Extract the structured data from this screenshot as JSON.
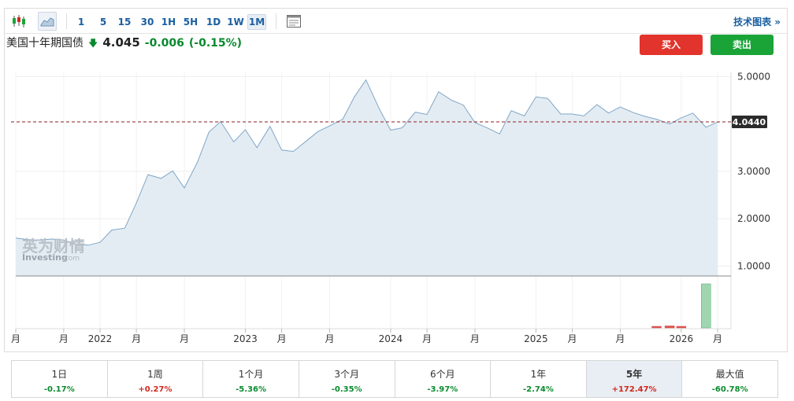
{
  "toolbar": {
    "timeframes": [
      "1",
      "5",
      "15",
      "30",
      "1H",
      "5H",
      "1D",
      "1W",
      "1M"
    ],
    "active_timeframe": "1M",
    "tech_chart_label": "技术图表 »",
    "icons": [
      "candlestick-icon",
      "area-chart-icon",
      "table-view-icon"
    ]
  },
  "quote": {
    "name": "美国十年期国债",
    "direction": "down",
    "price": "4.045",
    "change": "-0.006",
    "change_pct": "(-0.15%)"
  },
  "actions": {
    "buy_label": "买入",
    "sell_label": "卖出"
  },
  "watermark": {
    "cn": "英为财情",
    "en": "Investing",
    "en_suffix": ".com"
  },
  "current_price_tag": "4.0440",
  "colors": {
    "area_fill": "#e4ecf3",
    "line": "#7fa6c8",
    "ref_line": "#8b1e1e",
    "tag_bg": "#2b2b2b",
    "vol_up": "#9fd6b0",
    "vol_down": "#d9534f",
    "buy": "#e2342c",
    "sell": "#1aa438",
    "down": "#0a8a2e",
    "up": "#d0281f"
  },
  "chart_data": {
    "type": "area",
    "title": "",
    "y_ticks": [
      "5.0000",
      "3.0000",
      "2.0000",
      "1.0000"
    ],
    "y_tick_values": [
      5,
      3,
      2,
      1
    ],
    "ylim": [
      0.79,
      5.09
    ],
    "x_tick_labels": [
      "月",
      "月",
      "2022",
      "月",
      "月",
      "2023",
      "月",
      "月",
      "2024",
      "月",
      "月",
      "2025",
      "月",
      "月",
      "2026",
      "月"
    ],
    "x_tick_positions": [
      2021.42,
      2021.75,
      2022.0,
      2022.25,
      2022.58,
      2023.0,
      2023.25,
      2023.58,
      2024.0,
      2024.25,
      2024.58,
      2025.0,
      2025.25,
      2025.58,
      2026.0,
      2026.25
    ],
    "current_value": 4.044,
    "series": [
      {
        "values": [
          [
            2021.42,
            1.59
          ],
          [
            2021.5,
            1.56
          ],
          [
            2021.58,
            1.55
          ],
          [
            2021.67,
            1.57
          ],
          [
            2021.75,
            1.55
          ],
          [
            2021.83,
            1.46
          ],
          [
            2021.92,
            1.44
          ],
          [
            2022.0,
            1.5
          ],
          [
            2022.08,
            1.76
          ],
          [
            2022.17,
            1.8
          ],
          [
            2022.25,
            2.33
          ],
          [
            2022.33,
            2.93
          ],
          [
            2022.42,
            2.85
          ],
          [
            2022.5,
            3.01
          ],
          [
            2022.58,
            2.65
          ],
          [
            2022.67,
            3.19
          ],
          [
            2022.75,
            3.83
          ],
          [
            2022.83,
            4.05
          ],
          [
            2022.92,
            3.62
          ],
          [
            2023.0,
            3.88
          ],
          [
            2023.08,
            3.5
          ],
          [
            2023.17,
            3.95
          ],
          [
            2023.25,
            3.45
          ],
          [
            2023.33,
            3.42
          ],
          [
            2023.42,
            3.64
          ],
          [
            2023.5,
            3.84
          ],
          [
            2023.58,
            3.96
          ],
          [
            2023.67,
            4.1
          ],
          [
            2023.75,
            4.57
          ],
          [
            2023.83,
            4.93
          ],
          [
            2023.92,
            4.33
          ],
          [
            2024.0,
            3.87
          ],
          [
            2024.08,
            3.92
          ],
          [
            2024.17,
            4.25
          ],
          [
            2024.25,
            4.2
          ],
          [
            2024.33,
            4.68
          ],
          [
            2024.42,
            4.5
          ],
          [
            2024.5,
            4.4
          ],
          [
            2024.58,
            4.03
          ],
          [
            2024.67,
            3.91
          ],
          [
            2024.75,
            3.79
          ],
          [
            2024.83,
            4.28
          ],
          [
            2024.92,
            4.17
          ],
          [
            2025.0,
            4.57
          ],
          [
            2025.08,
            4.54
          ],
          [
            2025.17,
            4.21
          ],
          [
            2025.25,
            4.21
          ],
          [
            2025.33,
            4.17
          ],
          [
            2025.42,
            4.41
          ],
          [
            2025.5,
            4.23
          ],
          [
            2025.58,
            4.36
          ],
          [
            2025.67,
            4.24
          ],
          [
            2025.75,
            4.16
          ],
          [
            2025.83,
            4.1
          ],
          [
            2025.92,
            4.0
          ],
          [
            2026.0,
            4.13
          ],
          [
            2026.08,
            4.23
          ],
          [
            2026.17,
            3.93
          ],
          [
            2026.25,
            4.04
          ]
        ]
      }
    ],
    "volume": [
      {
        "x": 2025.83,
        "dir": "down",
        "rel": 0.02
      },
      {
        "x": 2025.92,
        "dir": "down",
        "rel": 0.045
      },
      {
        "x": 2026.0,
        "dir": "down",
        "rel": 0.03
      },
      {
        "x": 2026.17,
        "dir": "up",
        "rel": 1.0
      }
    ]
  },
  "periods": [
    {
      "label": "1日",
      "value": "-0.17%",
      "dir": "neg"
    },
    {
      "label": "1周",
      "value": "+0.27%",
      "dir": "pos"
    },
    {
      "label": "1个月",
      "value": "-5.36%",
      "dir": "neg"
    },
    {
      "label": "3个月",
      "value": "-0.35%",
      "dir": "neg"
    },
    {
      "label": "6个月",
      "value": "-3.97%",
      "dir": "neg"
    },
    {
      "label": "1年",
      "value": "-2.74%",
      "dir": "neg"
    },
    {
      "label": "5年",
      "value": "+172.47%",
      "dir": "pos",
      "active": true
    },
    {
      "label": "最大值",
      "value": "-60.78%",
      "dir": "neg"
    }
  ]
}
